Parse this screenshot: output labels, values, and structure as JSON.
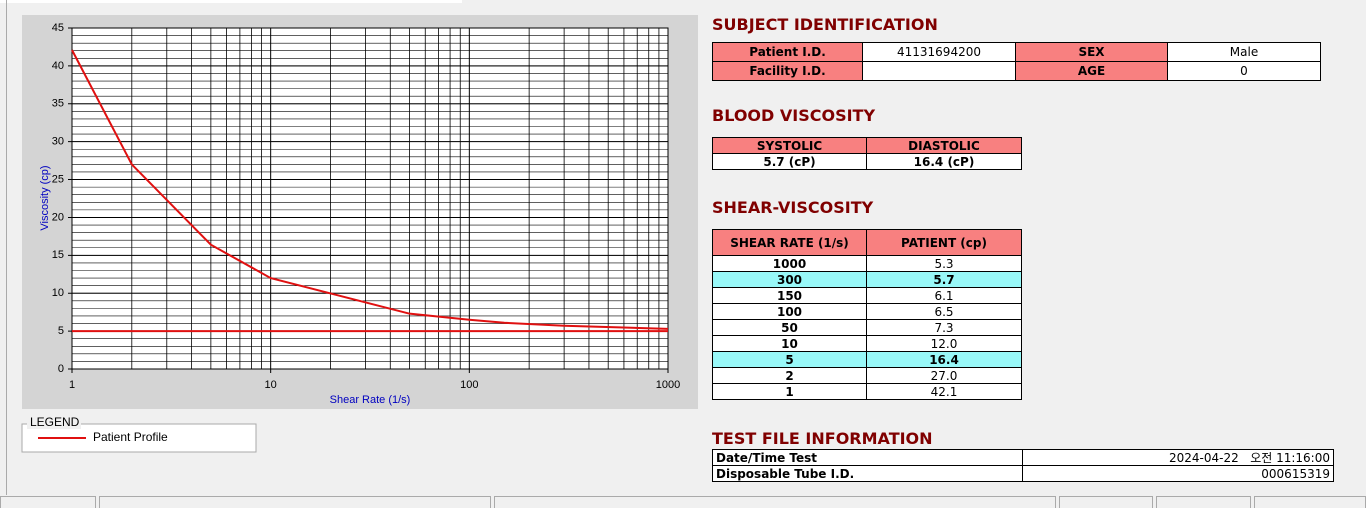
{
  "chart_data": {
    "type": "line",
    "x_label": "Shear Rate (1/s)",
    "y_label": "Viscosity (cp)",
    "x": [
      1,
      2,
      5,
      10,
      50,
      100,
      150,
      300,
      1000
    ],
    "series": [
      {
        "name": "Patient Profile",
        "color": "#e01010",
        "values": [
          42.1,
          27.0,
          16.4,
          12.0,
          7.3,
          6.5,
          6.1,
          5.7,
          5.3
        ]
      }
    ],
    "hlines": [
      5
    ],
    "xlim": [
      1,
      1000
    ],
    "xticks": [
      1,
      10,
      100,
      1000
    ],
    "x_log": true,
    "ylim": [
      0,
      45
    ],
    "yticks": [
      0,
      5,
      10,
      15,
      20,
      25,
      30,
      35,
      40,
      45
    ],
    "y_minor_step": 1,
    "grid": true,
    "legend_title": "LEGEND"
  },
  "subject_identification": {
    "title": "SUBJECT IDENTIFICATION",
    "rows": [
      {
        "label": "Patient I.D.",
        "value": "41131694200",
        "label2": "SEX",
        "value2": "Male"
      },
      {
        "label": "Facility I.D.",
        "label2": "AGE",
        "value2": "0"
      }
    ]
  },
  "blood_viscosity": {
    "title": "BLOOD VISCOSITY",
    "headers": [
      "SYSTOLIC",
      "DIASTOLIC"
    ],
    "values": [
      "5.7 (cP)",
      "16.4 (cP)"
    ]
  },
  "shear_viscosity": {
    "title": "SHEAR-VISCOSITY",
    "headers": [
      "SHEAR RATE (1/s)",
      "PATIENT (cp)"
    ],
    "rows": [
      {
        "rate": "1000",
        "patient": "5.3"
      },
      {
        "rate": "300",
        "patient": "5.7",
        "highlighted": true
      },
      {
        "rate": "150",
        "patient": "6.1"
      },
      {
        "rate": "100",
        "patient": "6.5"
      },
      {
        "rate": "50",
        "patient": "7.3"
      },
      {
        "rate": "10",
        "patient": "12.0"
      },
      {
        "rate": "5",
        "patient": "16.4",
        "highlighted": true
      },
      {
        "rate": "2",
        "patient": "27.0"
      },
      {
        "rate": "1",
        "patient": "42.1"
      }
    ]
  },
  "test_file_information": {
    "title": "TEST FILE INFORMATION",
    "rows": [
      {
        "label": "Date/Time Test",
        "value": "2024-04-22   오전 11:16:00"
      },
      {
        "label": "Disposable Tube I.D.",
        "value": "000615319"
      }
    ]
  }
}
